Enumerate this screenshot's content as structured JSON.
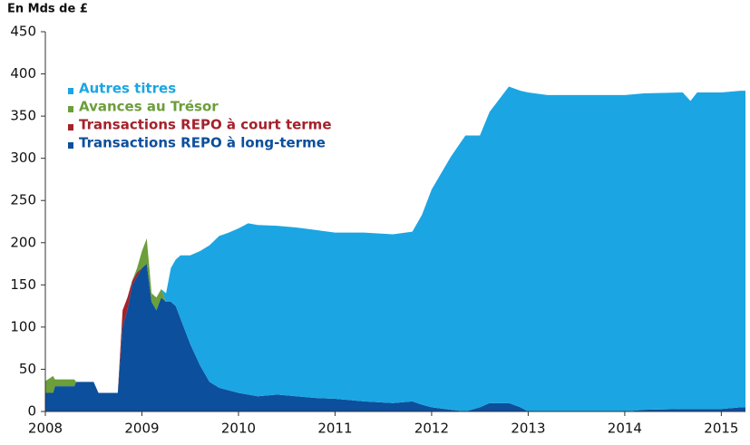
{
  "chart_data": {
    "type": "stacked-area",
    "y_label": "En Mds de £",
    "x": [
      2008.0,
      2008.08,
      2008.1,
      2008.3,
      2008.32,
      2008.5,
      2008.55,
      2008.75,
      2008.8,
      2008.85,
      2008.9,
      2008.95,
      2009.0,
      2009.05,
      2009.1,
      2009.15,
      2009.2,
      2009.25,
      2009.3,
      2009.35,
      2009.4,
      2009.5,
      2009.6,
      2009.7,
      2009.8,
      2009.9,
      2010.0,
      2010.1,
      2010.2,
      2010.4,
      2010.6,
      2010.8,
      2011.0,
      2011.3,
      2011.6,
      2011.8,
      2011.9,
      2012.0,
      2012.2,
      2012.35,
      2012.5,
      2012.6,
      2012.8,
      2012.92,
      2013.0,
      2013.2,
      2013.5,
      2014.0,
      2014.2,
      2014.6,
      2014.68,
      2014.75,
      2015.0,
      2015.2,
      2015.25
    ],
    "series": [
      {
        "name": "Autres titres",
        "color": "#1ba6e3",
        "values": [
          0,
          0,
          0,
          0,
          0,
          0,
          0,
          0,
          0,
          0,
          0,
          0,
          0,
          0,
          0,
          0,
          0,
          10,
          40,
          55,
          75,
          105,
          135,
          162,
          180,
          187,
          195,
          203,
          203,
          200,
          200,
          199,
          197,
          200,
          200,
          201,
          225,
          258,
          300,
          327,
          322,
          345,
          375,
          375,
          378,
          375,
          375,
          375,
          375,
          375,
          365,
          375,
          375,
          375,
          375
        ]
      },
      {
        "name": "Avances au Trésor",
        "color": "#6c9e3a",
        "values": [
          14,
          20,
          8,
          8,
          0,
          0,
          0,
          0,
          0,
          0,
          0,
          5,
          20,
          30,
          10,
          15,
          10,
          0,
          0,
          0,
          0,
          0,
          0,
          0,
          0,
          0,
          0,
          0,
          0,
          0,
          0,
          0,
          0,
          0,
          0,
          0,
          0,
          0,
          0,
          0,
          0,
          0,
          0,
          0,
          0,
          0,
          0,
          0,
          0,
          0,
          0,
          0,
          0,
          0,
          0
        ]
      },
      {
        "name": "Transactions REPO à court terme",
        "color": "#a5222b",
        "values": [
          0,
          0,
          0,
          0,
          0,
          0,
          0,
          0,
          20,
          15,
          5,
          5,
          0,
          0,
          0,
          0,
          0,
          0,
          0,
          0,
          0,
          0,
          0,
          0,
          0,
          0,
          0,
          0,
          0,
          0,
          0,
          0,
          0,
          0,
          0,
          0,
          0,
          0,
          0,
          0,
          0,
          0,
          0,
          0,
          0,
          0,
          0,
          0,
          0,
          0,
          0,
          0,
          0,
          0,
          0
        ]
      },
      {
        "name": "Transactions REPO à long-terme",
        "color": "#0c4f9c",
        "values": [
          22,
          22,
          30,
          30,
          35,
          35,
          22,
          22,
          100,
          120,
          150,
          160,
          170,
          175,
          130,
          120,
          135,
          130,
          130,
          125,
          110,
          80,
          55,
          35,
          28,
          25,
          22,
          20,
          18,
          20,
          18,
          16,
          15,
          12,
          10,
          12,
          8,
          5,
          2,
          0,
          5,
          10,
          10,
          5,
          0,
          0,
          0,
          0,
          2,
          3,
          3,
          3,
          3,
          5,
          5
        ]
      }
    ],
    "xlim": [
      2008,
      2015.25
    ],
    "xticks": [
      2008,
      2009,
      2010,
      2011,
      2012,
      2013,
      2014,
      2015
    ],
    "ylim": [
      0,
      450
    ],
    "yticks": [
      0,
      50,
      100,
      150,
      200,
      250,
      300,
      350,
      400,
      450
    ],
    "legend": "top-left"
  }
}
